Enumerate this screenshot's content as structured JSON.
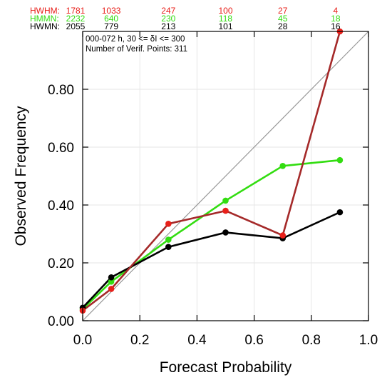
{
  "chart_data": {
    "type": "line",
    "xlabel": "Forecast Probability",
    "ylabel": "Observed Frequency",
    "xlim": [
      0,
      1
    ],
    "ylim": [
      0,
      1
    ],
    "x_ticks": [
      "0.0",
      "0.2",
      "0.4",
      "0.6",
      "0.8",
      "1.0"
    ],
    "y_ticks": [
      "0.00",
      "0.20",
      "0.40",
      "0.60",
      "0.80"
    ],
    "x_tick_values": [
      0,
      0.2,
      0.4,
      0.6,
      0.8,
      1.0
    ],
    "y_tick_values": [
      0,
      0.2,
      0.4,
      0.6,
      0.8
    ],
    "info_lines": [
      "000-072 h, 30 <= δI <= 300",
      "Number of Verif. Points: 311"
    ],
    "diagonal": true,
    "series": [
      {
        "name": "HWHM",
        "line_color": "#a52a2a",
        "marker_color": "#e8201a",
        "x": [
          0.0,
          0.1,
          0.3,
          0.5,
          0.7,
          0.9
        ],
        "y": [
          0.035,
          0.11,
          0.335,
          0.38,
          0.295,
          1.0
        ],
        "counts": [
          "1781",
          "1033",
          "247",
          "100",
          "27",
          "4"
        ]
      },
      {
        "name": "HMMN",
        "line_color": "#33dd11",
        "marker_color": "#33dd11",
        "x": [
          0.0,
          0.1,
          0.3,
          0.5,
          0.7,
          0.9
        ],
        "y": [
          0.04,
          0.135,
          0.28,
          0.415,
          0.535,
          0.555
        ],
        "counts": [
          "2232",
          "640",
          "230",
          "118",
          "45",
          "18"
        ]
      },
      {
        "name": "HWMN",
        "line_color": "#000000",
        "marker_color": "#000000",
        "x": [
          0.0,
          0.1,
          0.3,
          0.5,
          0.7,
          0.9
        ],
        "y": [
          0.045,
          0.15,
          0.255,
          0.305,
          0.285,
          0.375
        ],
        "counts": [
          "2055",
          "779",
          "213",
          "101",
          "28",
          "16"
        ]
      }
    ]
  }
}
